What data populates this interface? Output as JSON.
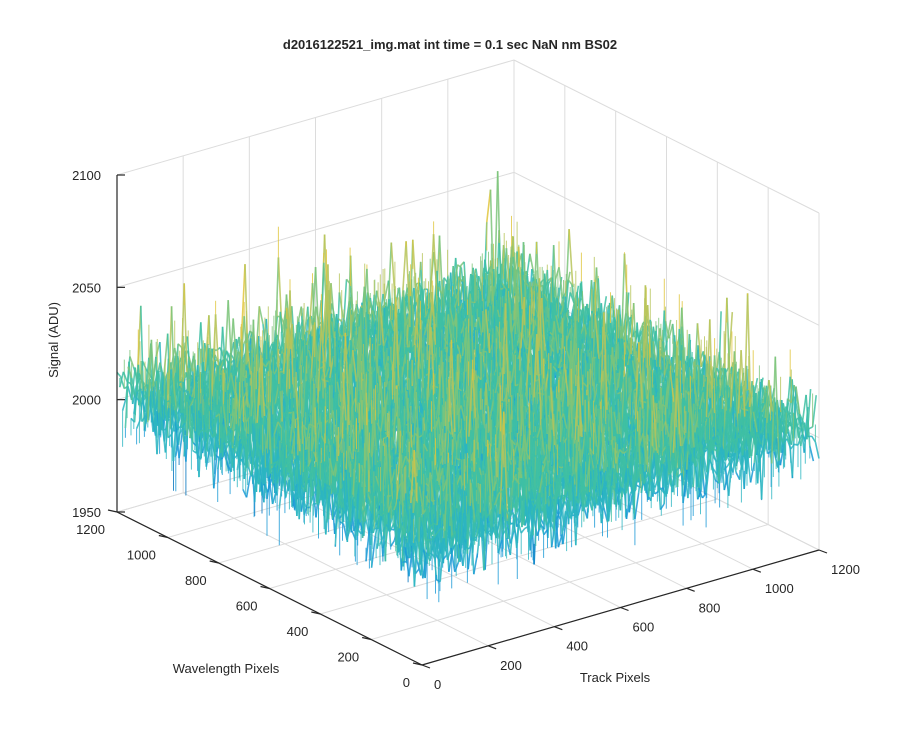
{
  "chart_data": {
    "type": "surface",
    "title": "d2016122521_img.mat int time = 0.1 sec  NaN nm BS02",
    "xlabel": "Track Pixels",
    "ylabel": "Wavelength Pixels",
    "zlabel": "Signal (ADU)",
    "x_ticks": [
      "0",
      "200",
      "400",
      "600",
      "800",
      "1000",
      "1200"
    ],
    "y_ticks": [
      "0",
      "200",
      "400",
      "600",
      "800",
      "1000",
      "1200"
    ],
    "z_ticks": [
      "1950",
      "2000",
      "2050",
      "2100"
    ],
    "xlim": [
      0,
      1200
    ],
    "ylim": [
      0,
      1200
    ],
    "zlim": [
      1950,
      2100
    ],
    "grid": true,
    "colormap": [
      "#0072bd",
      "#1a9ad6",
      "#2cb5c2",
      "#3fbfa3",
      "#7dc47a",
      "#b7c45a",
      "#e0c63c"
    ],
    "surface_summary": {
      "baseline_signal": 2003,
      "min_signal": 1957,
      "max_signal": 2085,
      "noise_amplitude": 15
    }
  }
}
